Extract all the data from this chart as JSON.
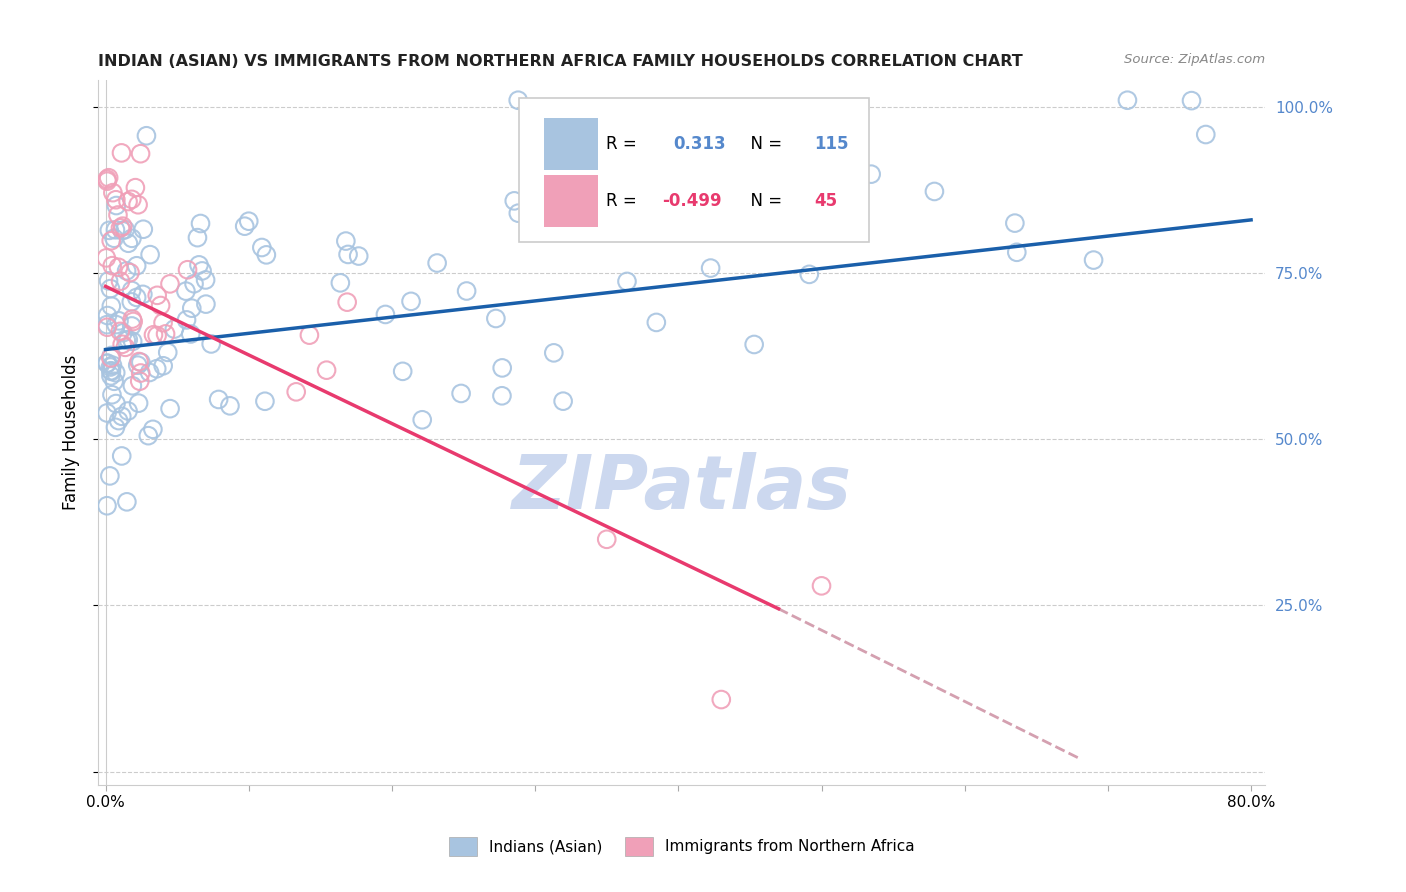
{
  "title": "INDIAN (ASIAN) VS IMMIGRANTS FROM NORTHERN AFRICA FAMILY HOUSEHOLDS CORRELATION CHART",
  "source": "Source: ZipAtlas.com",
  "ylabel": "Family Households",
  "xlim": [
    0,
    80
  ],
  "ylim": [
    0,
    100
  ],
  "blue_R": 0.313,
  "blue_N": 115,
  "pink_R": -0.499,
  "pink_N": 45,
  "blue_scatter_color": "#a8c4e0",
  "pink_scatter_color": "#f0a0b8",
  "blue_line_color": "#1a5faa",
  "pink_line_color": "#e83a6e",
  "pink_dash_color": "#d4a0b0",
  "watermark_color": "#ccd8ef",
  "grid_color": "#cccccc",
  "right_axis_color": "#5588cc",
  "title_color": "#222222",
  "source_color": "#888888",
  "legend_label_blue": "Indians (Asian)",
  "legend_label_pink": "Immigrants from Northern Africa",
  "blue_line_x0": 0,
  "blue_line_y0": 63.5,
  "blue_line_x1": 80,
  "blue_line_y1": 83.0,
  "pink_line_x0": 0,
  "pink_line_y0": 73.0,
  "pink_line_solid_x1": 47,
  "pink_line_solid_y1": 24.5,
  "pink_line_dash_x1": 68,
  "pink_line_dash_y1": 2.0,
  "ytick_positions": [
    0,
    25,
    50,
    75,
    100
  ],
  "ytick_right_labels": [
    "",
    "25.0%",
    "50.0%",
    "75.0%",
    "100.0%"
  ],
  "xtick_positions": [
    0,
    10,
    20,
    30,
    40,
    50,
    60,
    70,
    80
  ],
  "xtick_labels": [
    "0.0%",
    "",
    "",
    "",
    "",
    "",
    "",
    "",
    "80.0%"
  ],
  "blue_seed": 42,
  "pink_seed": 7
}
